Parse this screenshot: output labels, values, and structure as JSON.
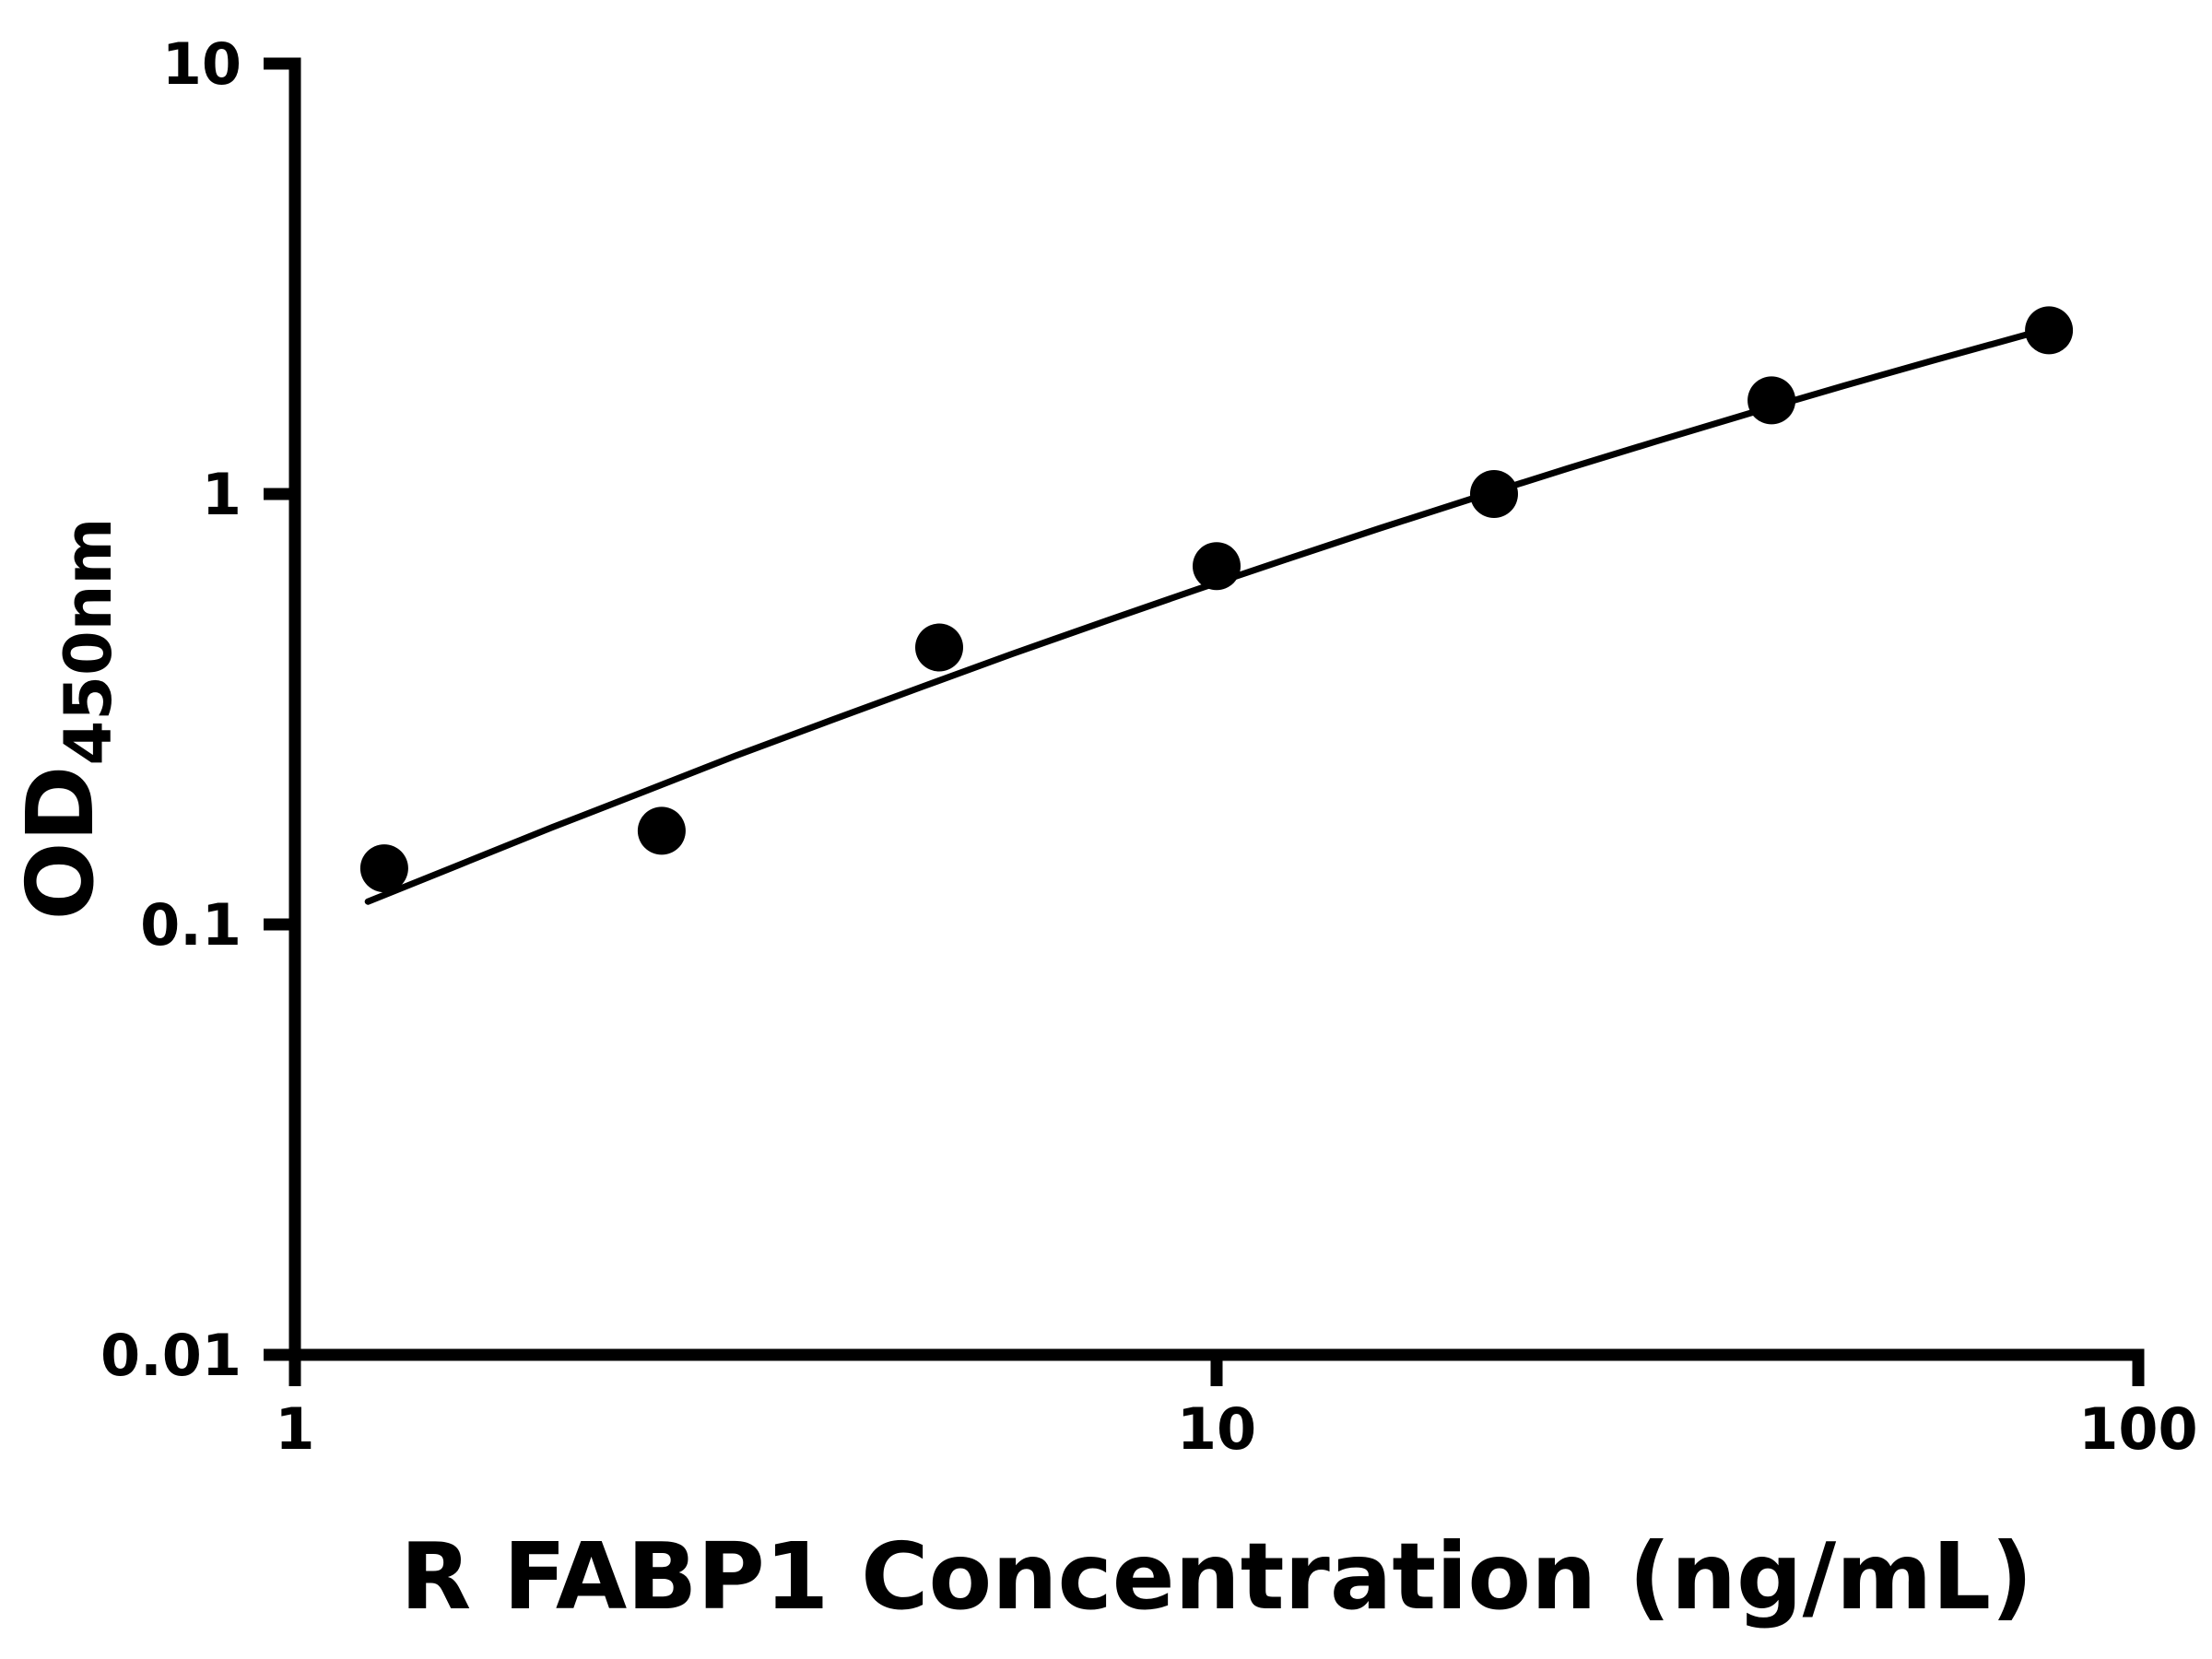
{
  "chart_data": {
    "type": "scatter",
    "title": "",
    "xlabel": "R FABP1 Concentration (ng/mL)",
    "ylabel_main": "OD",
    "ylabel_sub": "450nm",
    "x_scale": "log",
    "y_scale": "log",
    "xlim": [
      1,
      100
    ],
    "ylim": [
      0.01,
      10
    ],
    "x_ticks": [
      1,
      10,
      100
    ],
    "x_tick_labels": [
      "1",
      "10",
      "100"
    ],
    "y_ticks": [
      10,
      1,
      0.1,
      0.01
    ],
    "y_tick_labels": [
      "10",
      "1",
      "0.1",
      "0.01"
    ],
    "grid": false,
    "legend": "none",
    "marker_color": "#000000",
    "line_color": "#000000",
    "background_color": "#ffffff",
    "points": [
      [
        1.25,
        0.135
      ],
      [
        2.5,
        0.165
      ],
      [
        5,
        0.44
      ],
      [
        10,
        0.68
      ],
      [
        20,
        1.0
      ],
      [
        40,
        1.65
      ],
      [
        80,
        2.4
      ]
    ],
    "curve": [
      [
        1.2,
        0.113
      ],
      [
        1.5,
        0.137
      ],
      [
        1.9,
        0.168
      ],
      [
        2.4,
        0.204
      ],
      [
        3.0,
        0.246
      ],
      [
        3.8,
        0.297
      ],
      [
        4.8,
        0.357
      ],
      [
        6.0,
        0.425
      ],
      [
        7.6,
        0.508
      ],
      [
        9.6,
        0.604
      ],
      [
        12,
        0.709
      ],
      [
        15,
        0.831
      ],
      [
        19,
        0.978
      ],
      [
        24,
        1.145
      ],
      [
        30,
        1.326
      ],
      [
        38,
        1.543
      ],
      [
        48,
        1.786
      ],
      [
        60,
        2.045
      ],
      [
        76,
        2.353
      ],
      [
        82,
        2.459
      ]
    ]
  }
}
